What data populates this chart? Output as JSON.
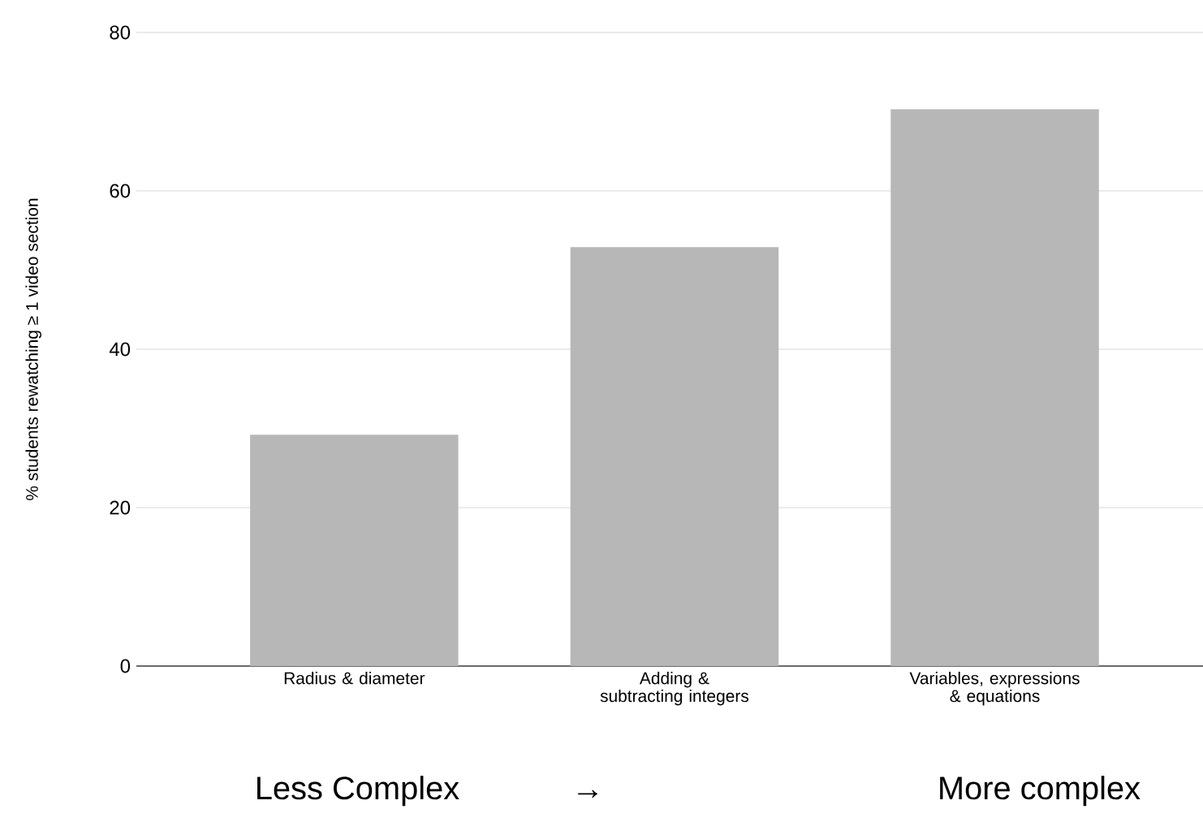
{
  "chart_data": {
    "type": "bar",
    "ylabel": "% students rewatching ≥ 1 video section",
    "categories": [
      "Radius & diameter",
      "Adding & subtracting integers",
      "Variables, expressions & equations"
    ],
    "values": [
      29.2,
      52.9,
      70.3
    ],
    "color": "#b7b7b7",
    "ylim": [
      0,
      80
    ],
    "yticks": [
      0,
      20,
      40,
      60,
      80
    ],
    "grid": "y",
    "annotations": [
      "Less Complex",
      "→",
      "More complex"
    ]
  }
}
